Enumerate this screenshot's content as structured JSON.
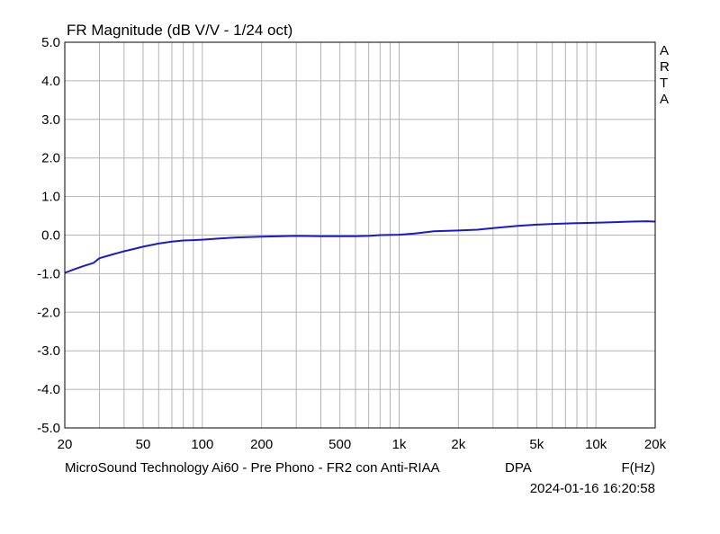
{
  "chart_data": {
    "type": "line",
    "title": "FR Magnitude (dB V/V - 1/24 oct)",
    "brand_letters": [
      "A",
      "R",
      "T",
      "A"
    ],
    "xlabel": "F(Hz)",
    "xscale": "log",
    "xlim": [
      20,
      20000
    ],
    "ylim": [
      -5.0,
      5.0
    ],
    "grid": true,
    "x_ticks": [
      {
        "value": 20,
        "label": "20"
      },
      {
        "value": 50,
        "label": "50"
      },
      {
        "value": 100,
        "label": "100"
      },
      {
        "value": 200,
        "label": "200"
      },
      {
        "value": 500,
        "label": "500"
      },
      {
        "value": 1000,
        "label": "1k"
      },
      {
        "value": 2000,
        "label": "2k"
      },
      {
        "value": 5000,
        "label": "5k"
      },
      {
        "value": 10000,
        "label": "10k"
      },
      {
        "value": 20000,
        "label": "20k"
      }
    ],
    "y_ticks": [
      {
        "value": 5.0,
        "label": "5.0"
      },
      {
        "value": 4.0,
        "label": "4.0"
      },
      {
        "value": 3.0,
        "label": "3.0"
      },
      {
        "value": 2.0,
        "label": "2.0"
      },
      {
        "value": 1.0,
        "label": "1.0"
      },
      {
        "value": 0.0,
        "label": "0.0"
      },
      {
        "value": -1.0,
        "label": "-1.0"
      },
      {
        "value": -2.0,
        "label": "-2.0"
      },
      {
        "value": -3.0,
        "label": "-3.0"
      },
      {
        "value": -4.0,
        "label": "-4.0"
      },
      {
        "value": -5.0,
        "label": "-5.0"
      }
    ],
    "series": [
      {
        "color": "#1a1acc",
        "x": [
          20,
          22,
          25,
          28,
          30,
          35,
          40,
          45,
          50,
          60,
          70,
          80,
          90,
          100,
          120,
          150,
          200,
          300,
          400,
          500,
          600,
          700,
          800,
          1000,
          1200,
          1500,
          2000,
          2500,
          3000,
          4000,
          5000,
          6000,
          7000,
          8000,
          10000,
          12000,
          15000,
          18000,
          20000
        ],
        "y": [
          -0.98,
          -0.9,
          -0.8,
          -0.72,
          -0.6,
          -0.5,
          -0.42,
          -0.36,
          -0.3,
          -0.22,
          -0.17,
          -0.14,
          -0.13,
          -0.12,
          -0.09,
          -0.06,
          -0.04,
          -0.02,
          -0.03,
          -0.03,
          -0.03,
          -0.02,
          0.0,
          0.01,
          0.04,
          0.1,
          0.12,
          0.14,
          0.18,
          0.24,
          0.27,
          0.29,
          0.3,
          0.31,
          0.32,
          0.33,
          0.35,
          0.36,
          0.35
        ]
      }
    ]
  },
  "footer": {
    "description": "MicroSound Technology Ai60 - Pre Phono - FR2 con Anti-RIAA",
    "dpa": "DPA",
    "timestamp": "2024-01-16  16:20:58"
  },
  "colors": {
    "grid": "#b4b4b4",
    "frame": "#000000",
    "trace": "#1a1acc"
  }
}
